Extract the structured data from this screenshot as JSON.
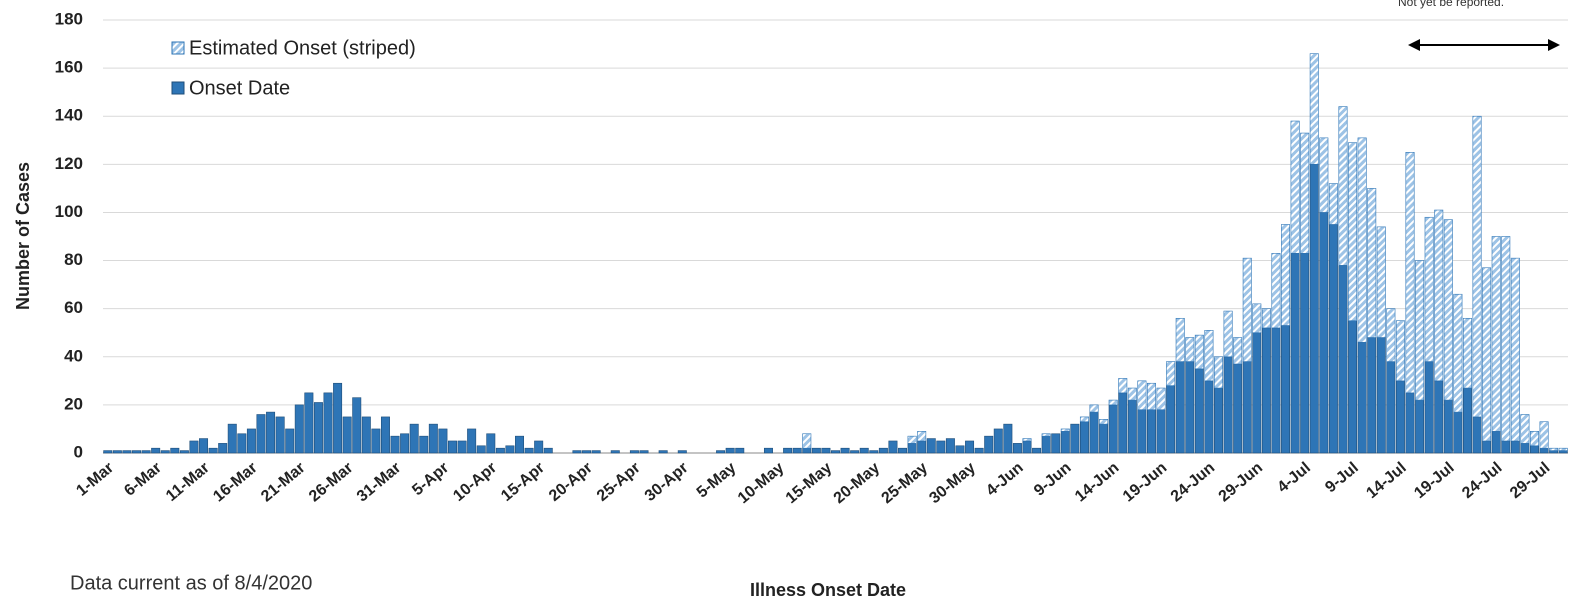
{
  "chart_data": {
    "type": "stacked-bar",
    "y_label": "Number of Cases",
    "x_label": "Illness Onset Date",
    "footnote": "Data current as of 8/4/2020",
    "annotation": "Not yet be reported.",
    "categories": [
      "1-Mar",
      null,
      null,
      null,
      null,
      "6-Mar",
      null,
      null,
      null,
      null,
      "11-Mar",
      null,
      null,
      null,
      null,
      "16-Mar",
      null,
      null,
      null,
      null,
      "21-Mar",
      null,
      null,
      null,
      null,
      "26-Mar",
      null,
      null,
      null,
      null,
      "31-Mar",
      null,
      null,
      null,
      null,
      "5-Apr",
      null,
      null,
      null,
      null,
      "10-Apr",
      null,
      null,
      null,
      null,
      "15-Apr",
      null,
      null,
      null,
      null,
      "20-Apr",
      null,
      null,
      null,
      null,
      "25-Apr",
      null,
      null,
      null,
      null,
      "30-Apr",
      null,
      null,
      null,
      null,
      "5-May",
      null,
      null,
      null,
      null,
      "10-May",
      null,
      null,
      null,
      null,
      "15-May",
      null,
      null,
      null,
      null,
      "20-May",
      null,
      null,
      null,
      null,
      "25-May",
      null,
      null,
      null,
      null,
      "30-May",
      null,
      null,
      null,
      null,
      "4-Jun",
      null,
      null,
      null,
      null,
      "9-Jun",
      null,
      null,
      null,
      null,
      "14-Jun",
      null,
      null,
      null,
      null,
      "19-Jun",
      null,
      null,
      null,
      null,
      "24-Jun",
      null,
      null,
      null,
      null,
      "29-Jun",
      null,
      null,
      null,
      null,
      "4-Jul",
      null,
      null,
      null,
      null,
      "9-Jul",
      null,
      null,
      null,
      null,
      "14-Jul",
      null,
      null,
      null,
      null,
      "19-Jul",
      null,
      null,
      null,
      null,
      "24-Jul",
      null,
      null,
      null,
      null,
      "29-Jul",
      null,
      null
    ],
    "series": [
      {
        "name": "Onset Date",
        "color": "#2e75b6",
        "values": [
          1,
          1,
          1,
          1,
          1,
          2,
          1,
          2,
          1,
          5,
          6,
          2,
          4,
          12,
          8,
          10,
          16,
          17,
          15,
          10,
          20,
          25,
          21,
          25,
          29,
          15,
          23,
          15,
          10,
          15,
          7,
          8,
          12,
          7,
          12,
          10,
          5,
          5,
          10,
          3,
          8,
          2,
          3,
          7,
          2,
          5,
          2,
          0,
          0,
          1,
          1,
          1,
          0,
          1,
          0,
          1,
          1,
          0,
          1,
          0,
          1,
          0,
          0,
          0,
          1,
          2,
          2,
          0,
          0,
          2,
          0,
          2,
          2,
          2,
          2,
          2,
          1,
          2,
          1,
          2,
          1,
          2,
          5,
          2,
          4,
          5,
          6,
          5,
          6,
          3,
          5,
          2,
          7,
          10,
          12,
          4,
          5,
          2,
          7,
          8,
          9,
          12,
          13,
          17,
          12,
          20,
          25,
          22,
          18,
          18,
          18,
          28,
          38,
          38,
          35,
          30,
          27,
          40,
          37,
          38,
          50,
          52,
          52,
          53,
          83,
          83,
          120,
          100,
          95,
          78,
          55,
          46,
          48,
          48,
          38,
          30,
          25,
          22,
          38,
          30,
          22,
          17,
          27,
          15,
          5,
          9,
          5,
          5,
          4,
          3,
          2,
          1,
          1
        ]
      },
      {
        "name": "Estimated Onset (striped)",
        "color": "#9dc3e6",
        "pattern": "striped",
        "values": [
          0,
          0,
          0,
          0,
          0,
          0,
          0,
          0,
          0,
          0,
          0,
          0,
          0,
          0,
          0,
          0,
          0,
          0,
          0,
          0,
          0,
          0,
          0,
          0,
          0,
          0,
          0,
          0,
          0,
          0,
          0,
          0,
          0,
          0,
          0,
          0,
          0,
          0,
          0,
          0,
          0,
          0,
          0,
          0,
          0,
          0,
          0,
          0,
          0,
          0,
          0,
          0,
          0,
          0,
          0,
          0,
          0,
          0,
          0,
          0,
          0,
          0,
          0,
          0,
          0,
          0,
          0,
          0,
          0,
          0,
          0,
          0,
          0,
          6,
          0,
          0,
          0,
          0,
          0,
          0,
          0,
          0,
          0,
          0,
          3,
          4,
          0,
          0,
          0,
          0,
          0,
          0,
          0,
          0,
          0,
          0,
          1,
          0,
          1,
          0,
          1,
          0,
          2,
          3,
          2,
          2,
          6,
          5,
          12,
          11,
          9,
          10,
          18,
          10,
          14,
          21,
          13,
          19,
          11,
          43,
          12,
          8,
          31,
          42,
          55,
          50,
          46,
          31,
          17,
          66,
          74,
          85,
          62,
          46,
          22,
          25,
          100,
          58,
          60,
          71,
          75,
          49,
          29,
          125,
          72,
          81,
          85,
          76,
          12,
          6,
          11,
          1,
          1
        ]
      }
    ],
    "ylim": [
      0,
      180
    ],
    "yticks": [
      0,
      20,
      40,
      60,
      80,
      100,
      120,
      140,
      160,
      180
    ],
    "grid": true
  }
}
